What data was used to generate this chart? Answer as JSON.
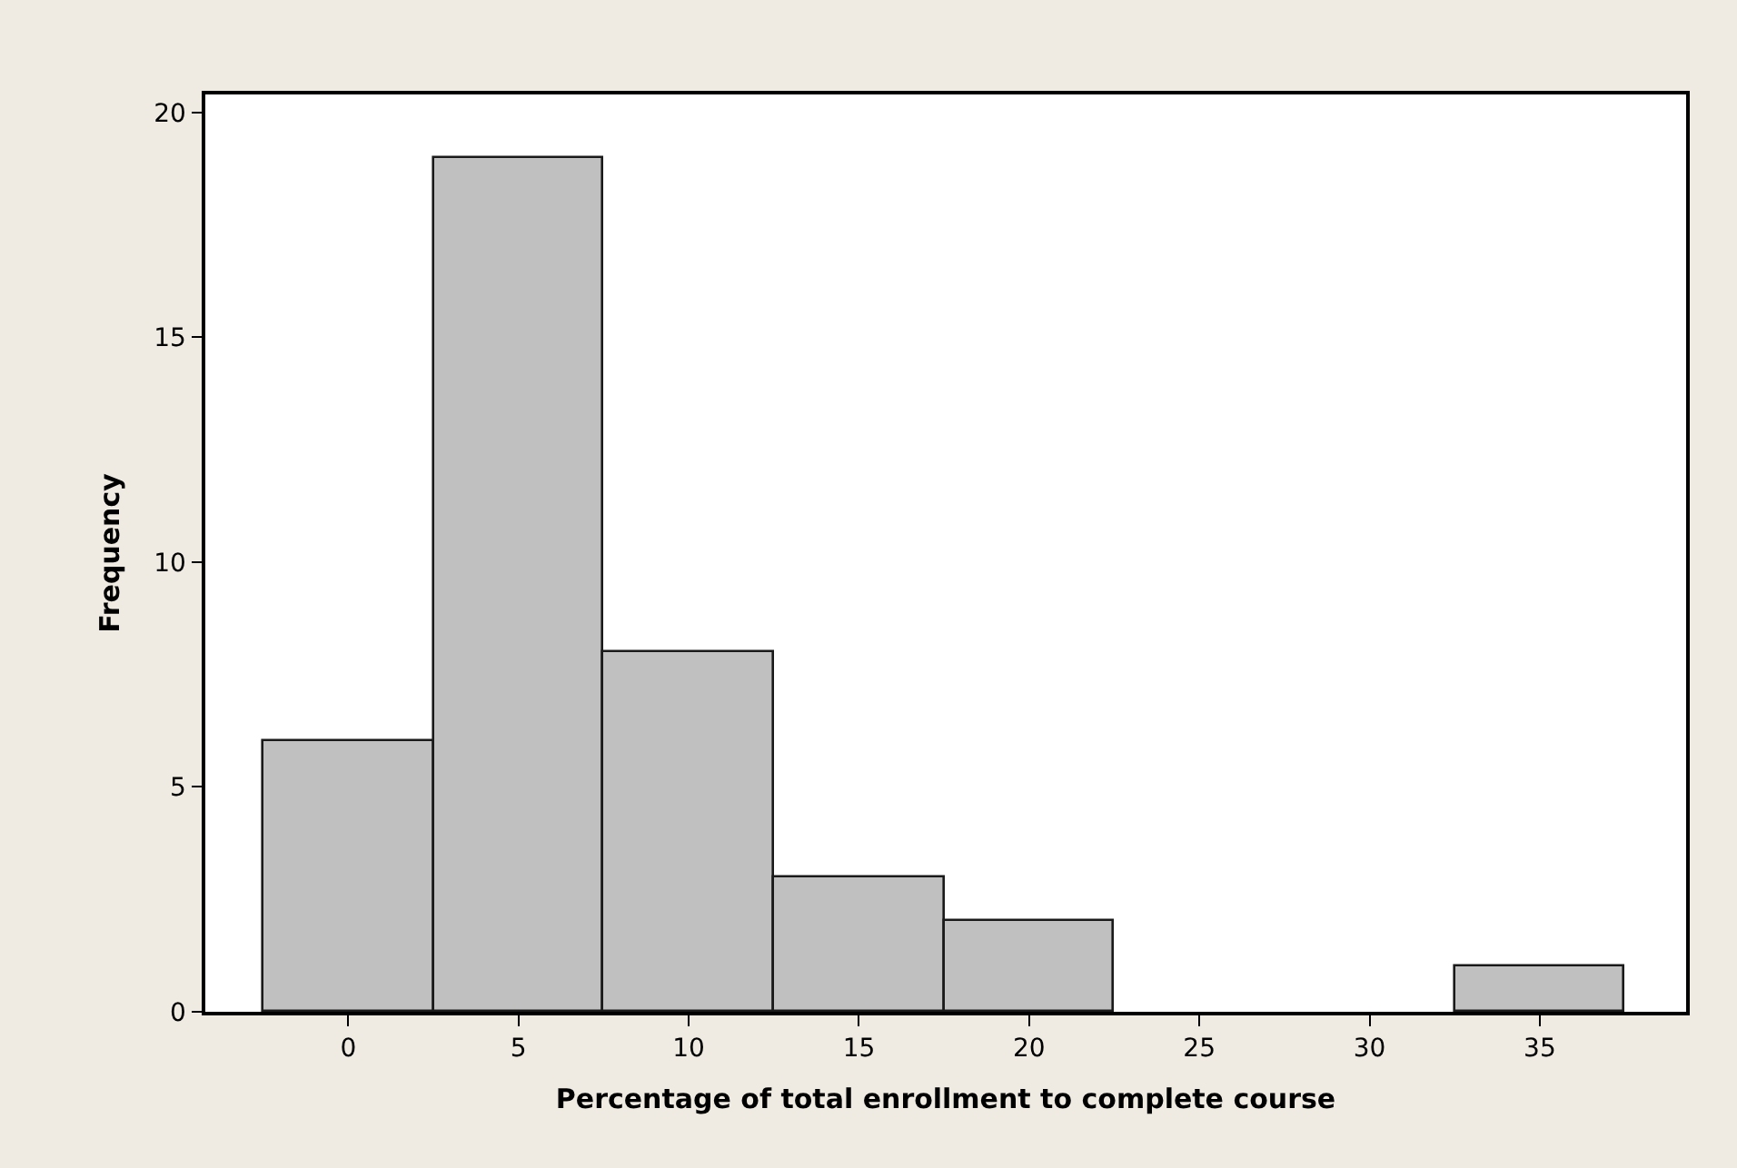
{
  "chart_data": {
    "type": "histogram",
    "xlabel": "Percentage of total enrollment to complete course",
    "ylabel": "Frequency",
    "bins": [
      -2.5,
      2.5,
      7.5,
      12.5,
      17.5,
      22.5,
      27.5,
      32.5,
      37.5
    ],
    "values": [
      6,
      19,
      8,
      3,
      2,
      0,
      0,
      1
    ],
    "color": "#c0c0c0",
    "xlim": [
      -4.2,
      39.3
    ],
    "xticks": [
      0,
      5,
      10,
      15,
      20,
      25,
      30,
      35
    ],
    "ylim": [
      0,
      20.4
    ],
    "yticks": [
      0,
      5,
      10,
      15,
      20
    ]
  }
}
